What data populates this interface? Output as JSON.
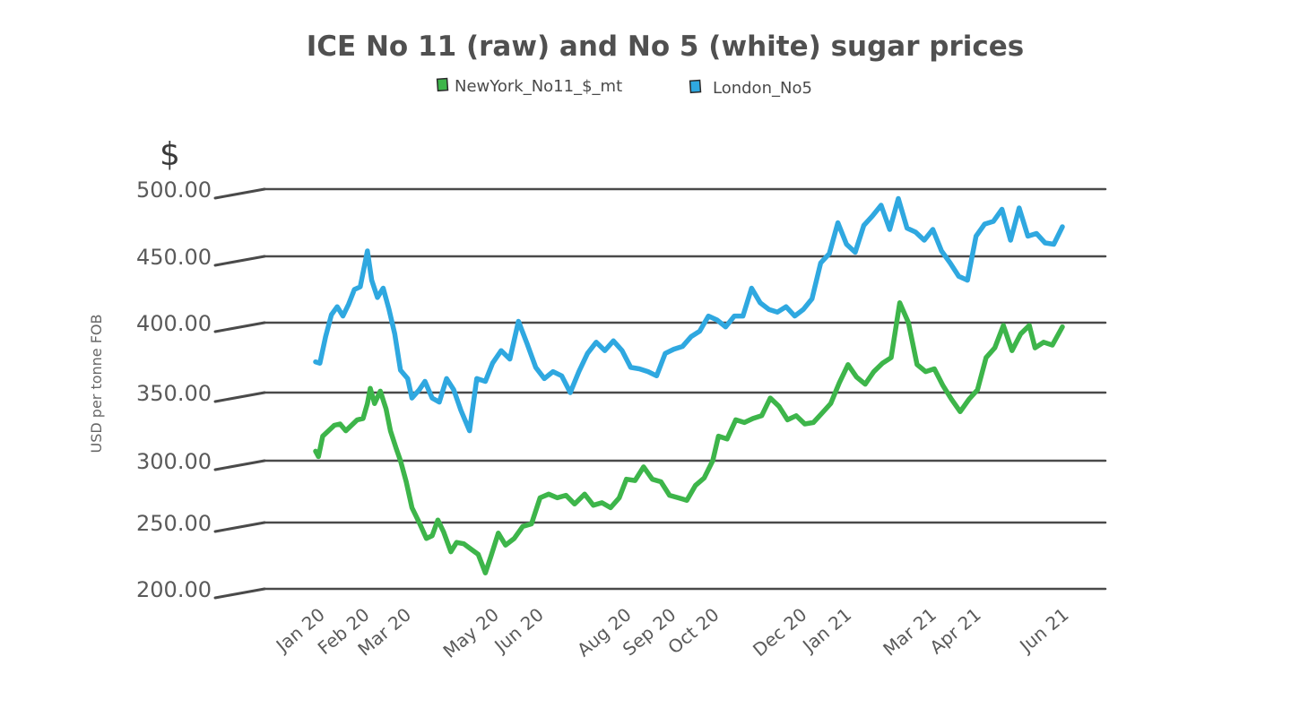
{
  "chart_data": {
    "type": "line",
    "title": "ICE No 11 (raw) and No 5 (white) sugar prices",
    "unit_label": "$",
    "ylabel": "USD per tonne FOB",
    "ylim": [
      200,
      500
    ],
    "yticks": [
      "500.00",
      "450.00",
      "400.00",
      "350.00",
      "300.00",
      "250.00",
      "200.00"
    ],
    "x_ticks": [
      "Jan 20",
      "Feb 20",
      "Mar 20",
      "May 20",
      "Jun 20",
      "Aug 20",
      "Sep 20",
      "Oct 20",
      "Dec 20",
      "Jan 21",
      "Mar 21",
      "Apr 21",
      "Jun 21"
    ],
    "x_tick_dates": [
      "2020-01-01",
      "2020-02-01",
      "2020-03-01",
      "2020-05-01",
      "2020-06-01",
      "2020-08-01",
      "2020-09-01",
      "2020-10-01",
      "2020-12-01",
      "2021-01-01",
      "2021-03-01",
      "2021-04-01",
      "2021-06-01"
    ],
    "grid": true,
    "legend_position": "top-center",
    "series": [
      {
        "name": "NewYork_No11_$_mt",
        "color": "#3db54a",
        "points": [
          [
            "2019-12-31",
            307
          ],
          [
            "2020-01-02",
            303
          ],
          [
            "2020-01-05",
            318
          ],
          [
            "2020-01-09",
            322
          ],
          [
            "2020-01-13",
            326
          ],
          [
            "2020-01-17",
            327
          ],
          [
            "2020-01-21",
            322
          ],
          [
            "2020-01-25",
            326
          ],
          [
            "2020-01-29",
            330
          ],
          [
            "2020-02-02",
            331
          ],
          [
            "2020-02-05",
            342
          ],
          [
            "2020-02-07",
            353
          ],
          [
            "2020-02-10",
            342
          ],
          [
            "2020-02-14",
            351
          ],
          [
            "2020-02-18",
            338
          ],
          [
            "2020-02-21",
            322
          ],
          [
            "2020-02-25",
            309
          ],
          [
            "2020-02-28",
            300
          ],
          [
            "2020-03-03",
            283
          ],
          [
            "2020-03-07",
            262
          ],
          [
            "2020-03-12",
            250
          ],
          [
            "2020-03-17",
            238
          ],
          [
            "2020-03-21",
            240
          ],
          [
            "2020-03-25",
            252
          ],
          [
            "2020-03-29",
            243
          ],
          [
            "2020-04-03",
            228
          ],
          [
            "2020-04-07",
            235
          ],
          [
            "2020-04-12",
            234
          ],
          [
            "2020-04-17",
            230
          ],
          [
            "2020-04-22",
            226
          ],
          [
            "2020-04-27",
            212
          ],
          [
            "2020-05-01",
            225
          ],
          [
            "2020-05-06",
            242
          ],
          [
            "2020-05-11",
            233
          ],
          [
            "2020-05-17",
            238
          ],
          [
            "2020-05-23",
            247
          ],
          [
            "2020-05-29",
            249
          ],
          [
            "2020-06-04",
            270
          ],
          [
            "2020-06-10",
            273
          ],
          [
            "2020-06-16",
            270
          ],
          [
            "2020-06-22",
            272
          ],
          [
            "2020-06-28",
            265
          ],
          [
            "2020-07-05",
            273
          ],
          [
            "2020-07-11",
            264
          ],
          [
            "2020-07-17",
            266
          ],
          [
            "2020-07-23",
            262
          ],
          [
            "2020-07-29",
            270
          ],
          [
            "2020-08-03",
            285
          ],
          [
            "2020-08-09",
            284
          ],
          [
            "2020-08-15",
            295
          ],
          [
            "2020-08-21",
            285
          ],
          [
            "2020-08-27",
            283
          ],
          [
            "2020-09-02",
            272
          ],
          [
            "2020-09-08",
            270
          ],
          [
            "2020-09-14",
            268
          ],
          [
            "2020-09-20",
            280
          ],
          [
            "2020-09-26",
            286
          ],
          [
            "2020-10-02",
            300
          ],
          [
            "2020-10-06",
            318
          ],
          [
            "2020-10-12",
            316
          ],
          [
            "2020-10-18",
            330
          ],
          [
            "2020-10-24",
            328
          ],
          [
            "2020-10-30",
            331
          ],
          [
            "2020-11-05",
            333
          ],
          [
            "2020-11-11",
            346
          ],
          [
            "2020-11-17",
            340
          ],
          [
            "2020-11-23",
            330
          ],
          [
            "2020-11-29",
            333
          ],
          [
            "2020-12-05",
            327
          ],
          [
            "2020-12-11",
            328
          ],
          [
            "2020-12-17",
            335
          ],
          [
            "2020-12-23",
            342
          ],
          [
            "2020-12-29",
            357
          ],
          [
            "2021-01-04",
            370
          ],
          [
            "2021-01-10",
            361
          ],
          [
            "2021-01-16",
            356
          ],
          [
            "2021-01-22",
            365
          ],
          [
            "2021-01-28",
            371
          ],
          [
            "2021-02-03",
            375
          ],
          [
            "2021-02-09",
            415
          ],
          [
            "2021-02-15",
            400
          ],
          [
            "2021-02-21",
            370
          ],
          [
            "2021-02-27",
            365
          ],
          [
            "2021-03-05",
            367
          ],
          [
            "2021-03-11",
            355
          ],
          [
            "2021-03-17",
            345
          ],
          [
            "2021-03-23",
            336
          ],
          [
            "2021-03-29",
            345
          ],
          [
            "2021-04-04",
            352
          ],
          [
            "2021-04-10",
            375
          ],
          [
            "2021-04-16",
            382
          ],
          [
            "2021-04-22",
            398
          ],
          [
            "2021-04-28",
            380
          ],
          [
            "2021-05-04",
            392
          ],
          [
            "2021-05-10",
            398
          ],
          [
            "2021-05-14",
            382
          ],
          [
            "2021-05-20",
            386
          ],
          [
            "2021-05-26",
            384
          ],
          [
            "2021-06-02",
            397
          ]
        ]
      },
      {
        "name": "London_No5",
        "color": "#2fa8e0",
        "points": [
          [
            "2019-12-31",
            372
          ],
          [
            "2020-01-03",
            371
          ],
          [
            "2020-01-07",
            390
          ],
          [
            "2020-01-11",
            406
          ],
          [
            "2020-01-15",
            412
          ],
          [
            "2020-01-19",
            405
          ],
          [
            "2020-01-23",
            414
          ],
          [
            "2020-01-27",
            425
          ],
          [
            "2020-01-31",
            427
          ],
          [
            "2020-02-05",
            454
          ],
          [
            "2020-02-08",
            432
          ],
          [
            "2020-02-12",
            419
          ],
          [
            "2020-02-16",
            426
          ],
          [
            "2020-02-20",
            410
          ],
          [
            "2020-02-24",
            392
          ],
          [
            "2020-02-28",
            366
          ],
          [
            "2020-03-04",
            360
          ],
          [
            "2020-03-07",
            346
          ],
          [
            "2020-03-12",
            352
          ],
          [
            "2020-03-16",
            358
          ],
          [
            "2020-03-21",
            346
          ],
          [
            "2020-03-26",
            343
          ],
          [
            "2020-03-31",
            360
          ],
          [
            "2020-04-05",
            352
          ],
          [
            "2020-04-10",
            337
          ],
          [
            "2020-04-16",
            322
          ],
          [
            "2020-04-21",
            360
          ],
          [
            "2020-04-27",
            358
          ],
          [
            "2020-05-02",
            371
          ],
          [
            "2020-05-08",
            380
          ],
          [
            "2020-05-14",
            374
          ],
          [
            "2020-05-20",
            401
          ],
          [
            "2020-05-26",
            385
          ],
          [
            "2020-06-01",
            368
          ],
          [
            "2020-06-07",
            360
          ],
          [
            "2020-06-13",
            365
          ],
          [
            "2020-06-19",
            362
          ],
          [
            "2020-06-25",
            350
          ],
          [
            "2020-07-01",
            365
          ],
          [
            "2020-07-07",
            378
          ],
          [
            "2020-07-13",
            386
          ],
          [
            "2020-07-19",
            380
          ],
          [
            "2020-07-25",
            387
          ],
          [
            "2020-07-31",
            380
          ],
          [
            "2020-08-06",
            368
          ],
          [
            "2020-08-12",
            367
          ],
          [
            "2020-08-18",
            365
          ],
          [
            "2020-08-24",
            362
          ],
          [
            "2020-08-30",
            378
          ],
          [
            "2020-09-05",
            381
          ],
          [
            "2020-09-11",
            383
          ],
          [
            "2020-09-17",
            390
          ],
          [
            "2020-09-23",
            394
          ],
          [
            "2020-09-29",
            405
          ],
          [
            "2020-10-05",
            402
          ],
          [
            "2020-10-11",
            397
          ],
          [
            "2020-10-17",
            405
          ],
          [
            "2020-10-23",
            405
          ],
          [
            "2020-10-29",
            426
          ],
          [
            "2020-11-04",
            415
          ],
          [
            "2020-11-10",
            410
          ],
          [
            "2020-11-16",
            408
          ],
          [
            "2020-11-22",
            412
          ],
          [
            "2020-11-28",
            405
          ],
          [
            "2020-12-04",
            410
          ],
          [
            "2020-12-10",
            418
          ],
          [
            "2020-12-16",
            445
          ],
          [
            "2020-12-22",
            452
          ],
          [
            "2020-12-28",
            475
          ],
          [
            "2021-01-03",
            459
          ],
          [
            "2021-01-09",
            453
          ],
          [
            "2021-01-15",
            473
          ],
          [
            "2021-01-21",
            480
          ],
          [
            "2021-01-27",
            488
          ],
          [
            "2021-02-02",
            470
          ],
          [
            "2021-02-08",
            493
          ],
          [
            "2021-02-14",
            471
          ],
          [
            "2021-02-20",
            468
          ],
          [
            "2021-02-26",
            462
          ],
          [
            "2021-03-04",
            470
          ],
          [
            "2021-03-10",
            454
          ],
          [
            "2021-03-16",
            445
          ],
          [
            "2021-03-22",
            435
          ],
          [
            "2021-03-28",
            432
          ],
          [
            "2021-04-03",
            465
          ],
          [
            "2021-04-09",
            474
          ],
          [
            "2021-04-15",
            476
          ],
          [
            "2021-04-21",
            485
          ],
          [
            "2021-04-27",
            462
          ],
          [
            "2021-05-03",
            486
          ],
          [
            "2021-05-09",
            465
          ],
          [
            "2021-05-15",
            467
          ],
          [
            "2021-05-21",
            460
          ],
          [
            "2021-05-27",
            459
          ],
          [
            "2021-06-02",
            472
          ]
        ]
      }
    ]
  }
}
